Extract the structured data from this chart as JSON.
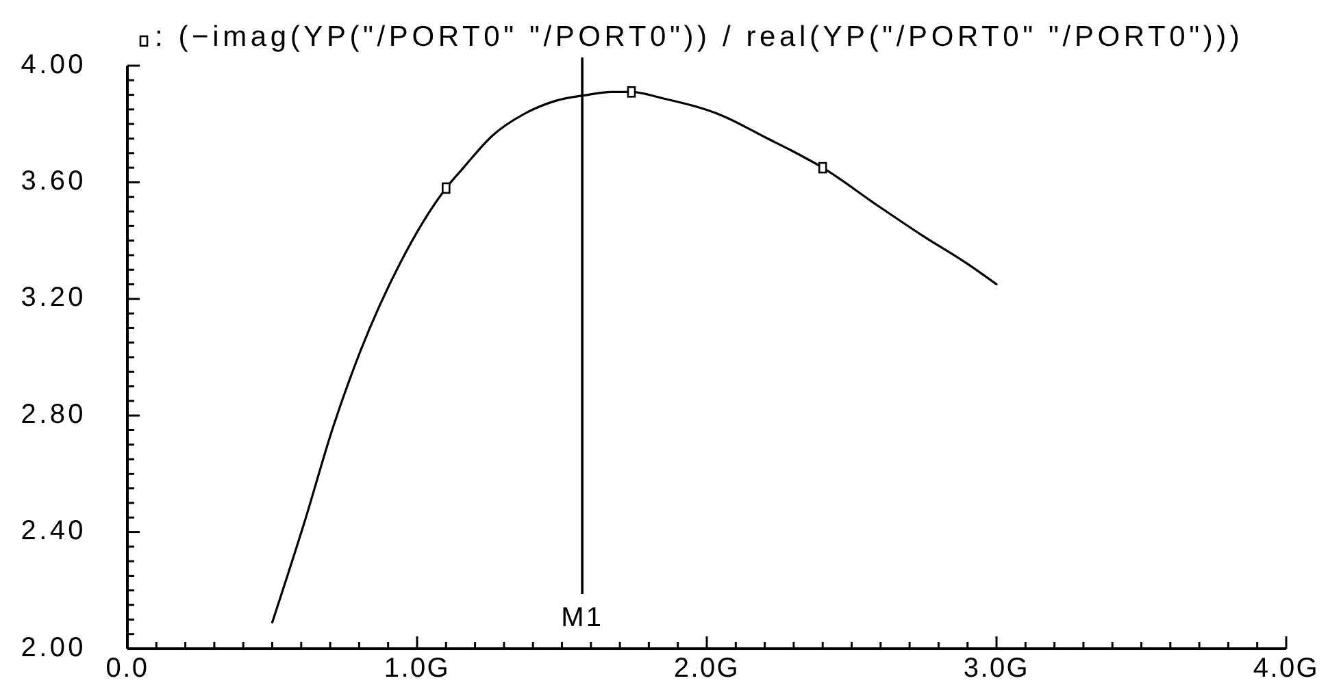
{
  "chart_data": {
    "type": "line",
    "xlim": [
      0,
      4
    ],
    "ylim": [
      2,
      4
    ],
    "xticks": [
      {
        "value": 0,
        "label": "0.0"
      },
      {
        "value": 0.1,
        "label": null
      },
      {
        "value": 0.2,
        "label": null
      },
      {
        "value": 0.3,
        "label": null
      },
      {
        "value": 0.4,
        "label": null
      },
      {
        "value": 0.5,
        "label": null
      },
      {
        "value": 0.6,
        "label": null
      },
      {
        "value": 0.7,
        "label": null
      },
      {
        "value": 0.8,
        "label": null
      },
      {
        "value": 0.9,
        "label": null
      },
      {
        "value": 1,
        "label": "1.0G"
      },
      {
        "value": 1.1,
        "label": null
      },
      {
        "value": 1.2,
        "label": null
      },
      {
        "value": 1.3,
        "label": null
      },
      {
        "value": 1.4,
        "label": null
      },
      {
        "value": 1.5,
        "label": null
      },
      {
        "value": 1.6,
        "label": null
      },
      {
        "value": 1.7,
        "label": null
      },
      {
        "value": 1.8,
        "label": null
      },
      {
        "value": 1.9,
        "label": null
      },
      {
        "value": 2,
        "label": "2.0G"
      },
      {
        "value": 2.1,
        "label": null
      },
      {
        "value": 2.2,
        "label": null
      },
      {
        "value": 2.3,
        "label": null
      },
      {
        "value": 2.4,
        "label": null
      },
      {
        "value": 2.5,
        "label": null
      },
      {
        "value": 2.6,
        "label": null
      },
      {
        "value": 2.7,
        "label": null
      },
      {
        "value": 2.8,
        "label": null
      },
      {
        "value": 2.9,
        "label": null
      },
      {
        "value": 3,
        "label": "3.0G"
      },
      {
        "value": 3.1,
        "label": null
      },
      {
        "value": 3.2,
        "label": null
      },
      {
        "value": 3.3,
        "label": null
      },
      {
        "value": 3.4,
        "label": null
      },
      {
        "value": 3.5,
        "label": null
      },
      {
        "value": 3.6,
        "label": null
      },
      {
        "value": 3.7,
        "label": null
      },
      {
        "value": 3.8,
        "label": null
      },
      {
        "value": 3.9,
        "label": null
      },
      {
        "value": 4,
        "label": "4.0G"
      }
    ],
    "yticks": [
      {
        "value": 2,
        "label": "2.00"
      },
      {
        "value": 2.05,
        "label": null
      },
      {
        "value": 2.1,
        "label": null
      },
      {
        "value": 2.15,
        "label": null
      },
      {
        "value": 2.2,
        "label": null
      },
      {
        "value": 2.25,
        "label": null
      },
      {
        "value": 2.3,
        "label": null
      },
      {
        "value": 2.35,
        "label": null
      },
      {
        "value": 2.4,
        "label": "2.40"
      },
      {
        "value": 2.45,
        "label": null
      },
      {
        "value": 2.5,
        "label": null
      },
      {
        "value": 2.55,
        "label": null
      },
      {
        "value": 2.6,
        "label": null
      },
      {
        "value": 2.65,
        "label": null
      },
      {
        "value": 2.7,
        "label": null
      },
      {
        "value": 2.75,
        "label": null
      },
      {
        "value": 2.8,
        "label": "2.80"
      },
      {
        "value": 2.85,
        "label": null
      },
      {
        "value": 2.9,
        "label": null
      },
      {
        "value": 2.95,
        "label": null
      },
      {
        "value": 3,
        "label": null
      },
      {
        "value": 3.05,
        "label": null
      },
      {
        "value": 3.1,
        "label": null
      },
      {
        "value": 3.15,
        "label": null
      },
      {
        "value": 3.2,
        "label": "3.20"
      },
      {
        "value": 3.25,
        "label": null
      },
      {
        "value": 3.3,
        "label": null
      },
      {
        "value": 3.35,
        "label": null
      },
      {
        "value": 3.4,
        "label": null
      },
      {
        "value": 3.45,
        "label": null
      },
      {
        "value": 3.5,
        "label": null
      },
      {
        "value": 3.55,
        "label": null
      },
      {
        "value": 3.6,
        "label": "3.60"
      },
      {
        "value": 3.65,
        "label": null
      },
      {
        "value": 3.7,
        "label": null
      },
      {
        "value": 3.75,
        "label": null
      },
      {
        "value": 3.8,
        "label": null
      },
      {
        "value": 3.85,
        "label": null
      },
      {
        "value": 3.9,
        "label": null
      },
      {
        "value": 3.95,
        "label": null
      },
      {
        "value": 4,
        "label": "4.00"
      }
    ],
    "marker": "square",
    "legend": "top left",
    "series": [
      {
        "name": ": (−imag(YP(\"/PORT0\" \"/PORT0\")) / real(YP(\"/PORT0\" \"/PORT0\")))",
        "color": "#000000",
        "marker": "none",
        "x": [
          0.5,
          0.61,
          0.71,
          0.8,
          0.94,
          1.1,
          1.16,
          1.26,
          1.38,
          1.48,
          1.59,
          1.67,
          1.74,
          1.84,
          2.05,
          2.21,
          2.29,
          2.4,
          2.59,
          2.74,
          2.9,
          3.0
        ],
        "values": [
          2.09,
          2.43,
          2.76,
          3.01,
          3.32,
          3.58,
          3.65,
          3.76,
          3.84,
          3.88,
          3.9,
          3.91,
          3.91,
          3.89,
          3.83,
          3.75,
          3.71,
          3.65,
          3.52,
          3.42,
          3.32,
          3.25
        ]
      },
      {
        "type": "scatter",
        "color": "#000000",
        "x": [
          1.1,
          1.74,
          2.4
        ],
        "values": [
          3.58,
          3.91,
          3.65
        ]
      }
    ],
    "ref_lines": [
      {
        "axis": "x",
        "value": 1.57,
        "label": "M1",
        "color": "#000000"
      }
    ]
  }
}
